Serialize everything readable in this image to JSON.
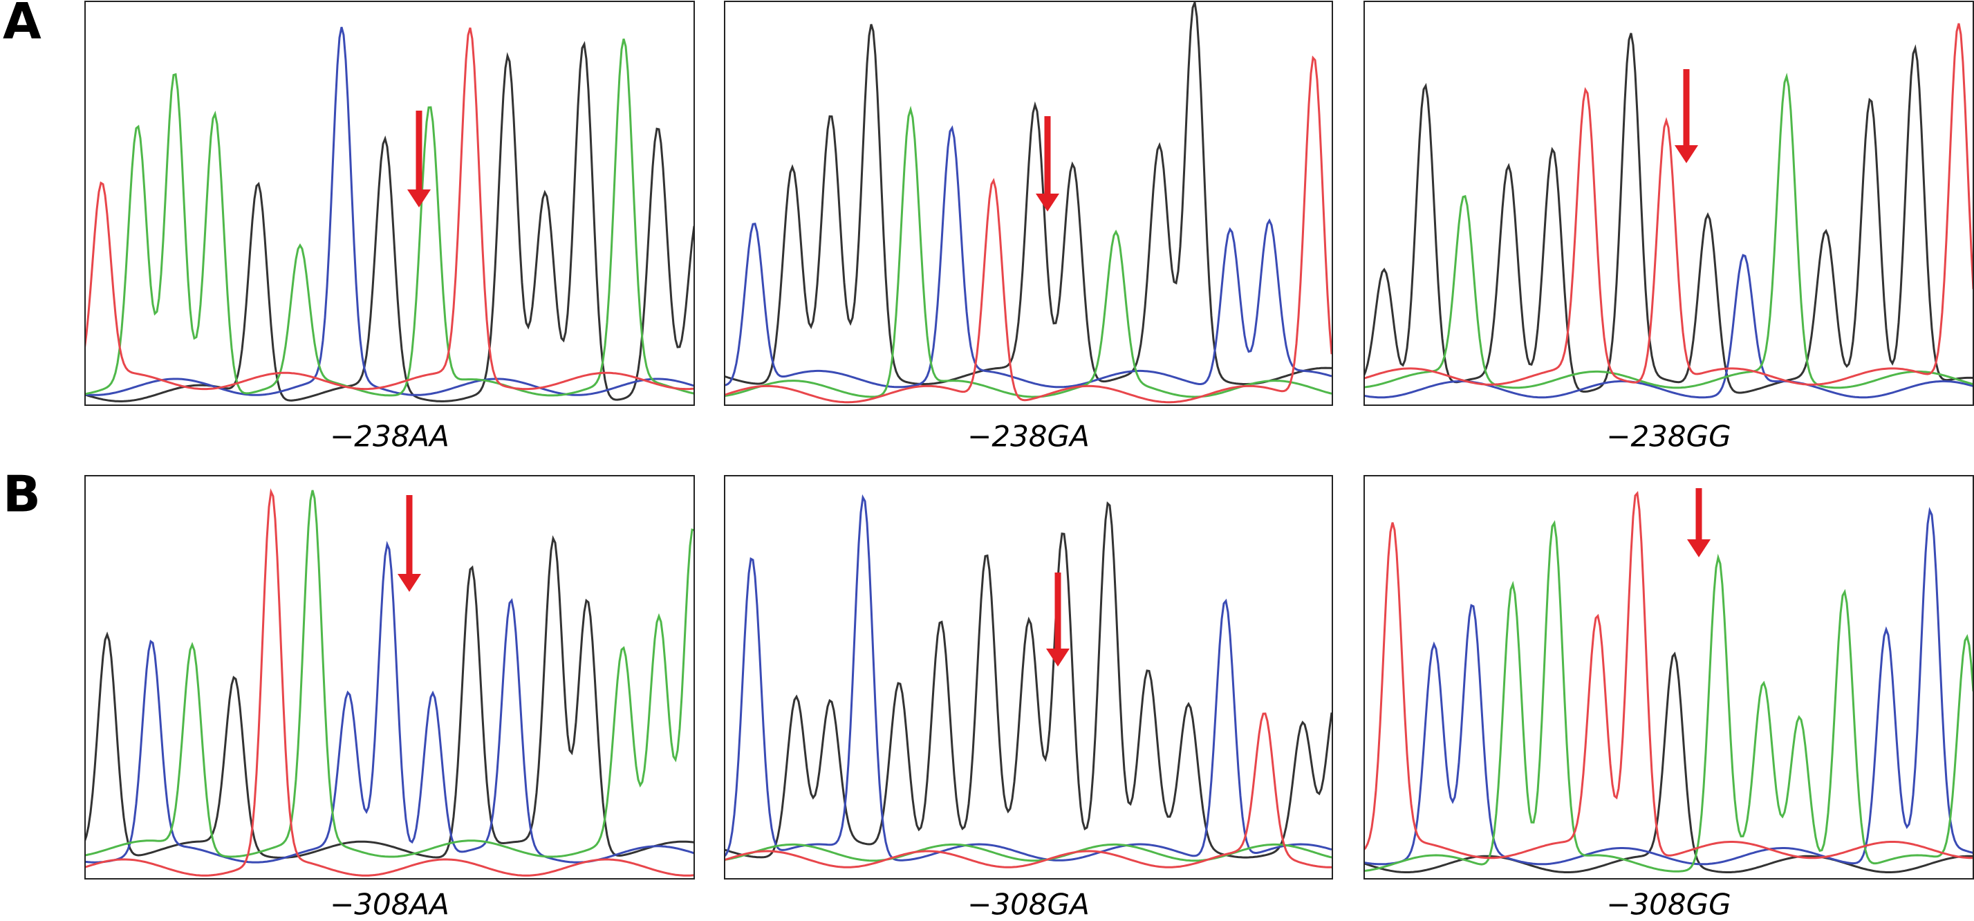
{
  "rows": [
    {
      "label": "A",
      "panels": [
        {
          "caption": "−238AA"
        },
        {
          "caption": "−238GA"
        },
        {
          "caption": "−238GG"
        }
      ]
    },
    {
      "label": "B",
      "panels": [
        {
          "caption": "−308AA"
        },
        {
          "caption": "−308GA"
        },
        {
          "caption": "−308GG"
        }
      ]
    }
  ]
}
